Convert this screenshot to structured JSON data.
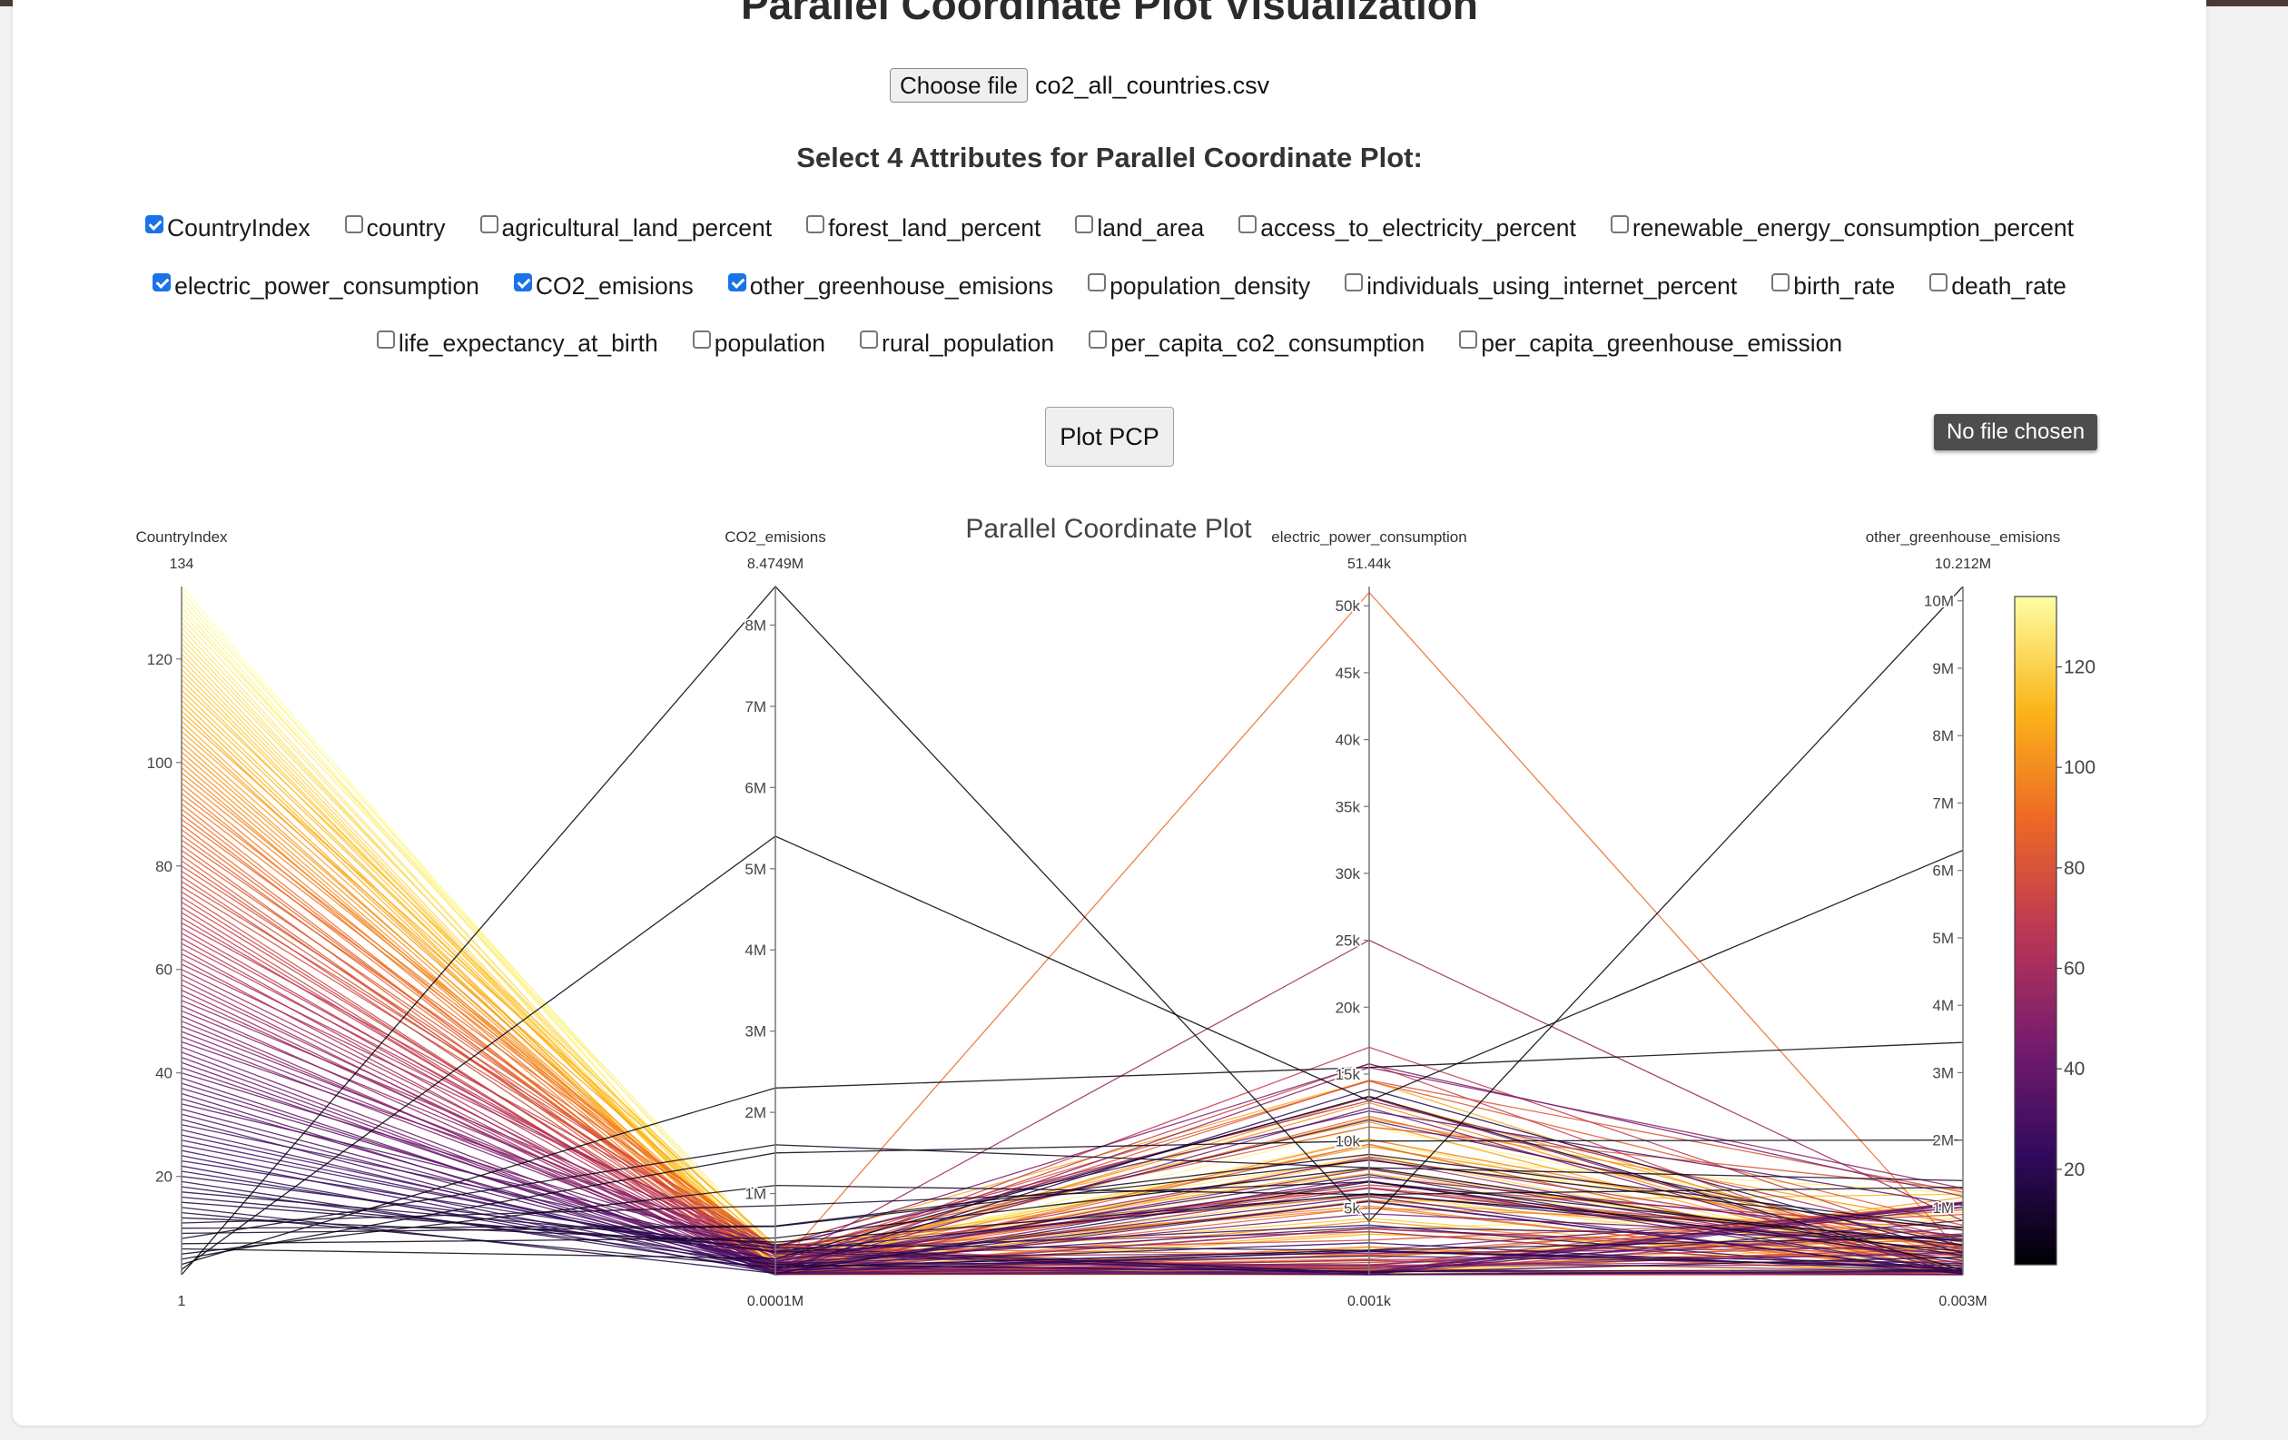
{
  "page": {
    "title": "Parallel Coordinate Plot Visualization",
    "choose_file_label": "Choose file",
    "file_name": "co2_all_countries.csv",
    "select_heading": "Select 4 Attributes for Parallel Coordinate Plot:",
    "plot_button_label": "Plot PCP",
    "tooltip_text": "No file chosen"
  },
  "attributes": {
    "row1": [
      {
        "label": "CountryIndex",
        "checked": true
      },
      {
        "label": "country",
        "checked": false
      },
      {
        "label": "agricultural_land_percent",
        "checked": false
      },
      {
        "label": "forest_land_percent",
        "checked": false
      },
      {
        "label": "land_area",
        "checked": false
      },
      {
        "label": "access_to_electricity_percent",
        "checked": false
      },
      {
        "label": "renewable_energy_consumption_percent",
        "checked": false
      }
    ],
    "row2": [
      {
        "label": "electric_power_consumption",
        "checked": true
      },
      {
        "label": "CO2_emisions",
        "checked": true
      },
      {
        "label": "other_greenhouse_emisions",
        "checked": true
      },
      {
        "label": "population_density",
        "checked": false
      },
      {
        "label": "individuals_using_internet_percent",
        "checked": false
      },
      {
        "label": "birth_rate",
        "checked": false
      },
      {
        "label": "death_rate",
        "checked": false
      }
    ],
    "row3": [
      {
        "label": "life_expectancy_at_birth",
        "checked": false
      },
      {
        "label": "population",
        "checked": false
      },
      {
        "label": "rural_population",
        "checked": false
      },
      {
        "label": "per_capita_co2_consumption",
        "checked": false
      },
      {
        "label": "per_capita_greenhouse_emission",
        "checked": false
      }
    ]
  },
  "chart_data": {
    "type": "parallel_coordinates",
    "title": "Parallel Coordinate Plot",
    "record_count": 134,
    "colorscale": [
      "#000004",
      "#320a5e",
      "#781c6d",
      "#bc3754",
      "#ed6925",
      "#fbb61a",
      "#fcffa4"
    ],
    "colorbar": {
      "min": 1,
      "max": 134,
      "ticks": [
        20,
        40,
        60,
        80,
        100,
        120
      ]
    },
    "axes": [
      {
        "name": "CountryIndex",
        "range": [
          1,
          134
        ],
        "top_label": "134",
        "bottom_label": "1",
        "ticks": [
          {
            "v": 20,
            "t": "20"
          },
          {
            "v": 40,
            "t": "40"
          },
          {
            "v": 60,
            "t": "60"
          },
          {
            "v": 80,
            "t": "80"
          },
          {
            "v": 100,
            "t": "100"
          },
          {
            "v": 120,
            "t": "120"
          }
        ]
      },
      {
        "name": "CO2_emisions",
        "range": [
          100,
          8474900
        ],
        "top_label": "8.4749M",
        "bottom_label": "0.0001M",
        "ticks": [
          {
            "v": 1000000,
            "t": "1M"
          },
          {
            "v": 2000000,
            "t": "2M"
          },
          {
            "v": 3000000,
            "t": "3M"
          },
          {
            "v": 4000000,
            "t": "4M"
          },
          {
            "v": 5000000,
            "t": "5M"
          },
          {
            "v": 6000000,
            "t": "6M"
          },
          {
            "v": 7000000,
            "t": "7M"
          },
          {
            "v": 8000000,
            "t": "8M"
          }
        ]
      },
      {
        "name": "electric_power_consumption",
        "range": [
          1,
          51440
        ],
        "top_label": "51.44k",
        "bottom_label": "0.001k",
        "ticks": [
          {
            "v": 5000,
            "t": "5k"
          },
          {
            "v": 10000,
            "t": "10k"
          },
          {
            "v": 15000,
            "t": "15k"
          },
          {
            "v": 20000,
            "t": "20k"
          },
          {
            "v": 25000,
            "t": "25k"
          },
          {
            "v": 30000,
            "t": "30k"
          },
          {
            "v": 35000,
            "t": "35k"
          },
          {
            "v": 40000,
            "t": "40k"
          },
          {
            "v": 45000,
            "t": "45k"
          },
          {
            "v": 50000,
            "t": "50k"
          }
        ]
      },
      {
        "name": "other_greenhouse_emisions",
        "range": [
          3000,
          10212000
        ],
        "top_label": "10.212M",
        "bottom_label": "0.003M",
        "ticks": [
          {
            "v": 1000000,
            "t": "1M"
          },
          {
            "v": 2000000,
            "t": "2M"
          },
          {
            "v": 3000000,
            "t": "3M"
          },
          {
            "v": 4000000,
            "t": "4M"
          },
          {
            "v": 5000000,
            "t": "5M"
          },
          {
            "v": 6000000,
            "t": "6M"
          },
          {
            "v": 7000000,
            "t": "7M"
          },
          {
            "v": 8000000,
            "t": "8M"
          },
          {
            "v": 9000000,
            "t": "9M"
          },
          {
            "v": 10000000,
            "t": "10M"
          }
        ]
      }
    ],
    "records_sample": [
      [
        1,
        8474900,
        4000,
        10212000
      ],
      [
        2,
        5400000,
        13000,
        6300000
      ],
      [
        3,
        2300000,
        15500,
        3450000
      ],
      [
        4,
        1500000,
        10000,
        2000000
      ],
      [
        5,
        1100000,
        6000,
        1300000
      ],
      [
        8,
        1600000,
        8000,
        1400000
      ],
      [
        10,
        600000,
        9000,
        700000
      ],
      [
        12,
        400000,
        6000,
        500000
      ],
      [
        55,
        120000,
        25000,
        800000
      ],
      [
        70,
        90000,
        17000,
        400000
      ],
      [
        90,
        60000,
        51000,
        300000
      ],
      [
        100,
        20000,
        4000,
        80000
      ],
      [
        120,
        8000,
        2000,
        30000
      ],
      [
        134,
        3000,
        1000,
        10000
      ]
    ]
  }
}
